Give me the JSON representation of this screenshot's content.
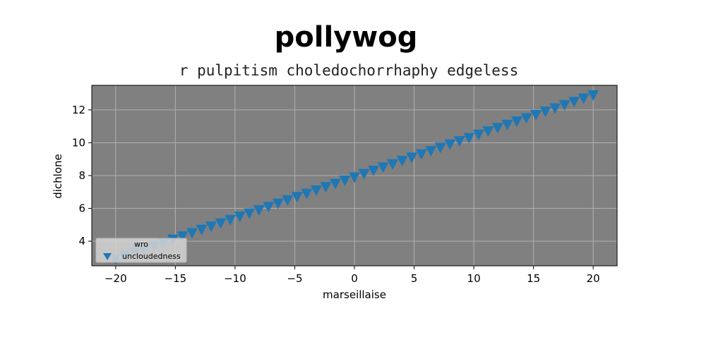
{
  "chart_data": {
    "type": "scatter",
    "title": "pollywog",
    "subtitle": "r pulpitism choledochorrhaphy edgeless",
    "xlabel": "marseillaise",
    "ylabel": "dichlone",
    "xlim": [
      -22,
      22
    ],
    "ylim": [
      2.5,
      13.5
    ],
    "xticks": [
      -20,
      -15,
      -10,
      -5,
      0,
      5,
      10,
      15,
      20
    ],
    "xtick_labels": [
      "−20",
      "−15",
      "−10",
      "−5",
      "0",
      "5",
      "10",
      "15",
      "20"
    ],
    "yticks": [
      4,
      6,
      8,
      10,
      12
    ],
    "ytick_labels": [
      "4",
      "6",
      "8",
      "10",
      "12"
    ],
    "grid": true,
    "plot_background": "#808080",
    "legend": {
      "title": "wro",
      "placement": "lower-left"
    },
    "series": [
      {
        "name": "uncloudedness",
        "marker": "triangle-down",
        "color": "#1f77b4",
        "x": [
          -20.0,
          -19.2,
          -18.4,
          -17.6,
          -16.8,
          -16.0,
          -15.2,
          -14.4,
          -13.6,
          -12.8,
          -12.0,
          -11.2,
          -10.4,
          -9.6,
          -8.8,
          -8.0,
          -7.2,
          -6.4,
          -5.6,
          -4.8,
          -4.0,
          -3.2,
          -2.4,
          -1.6,
          -0.8,
          0.0,
          0.8,
          1.6,
          2.4,
          3.2,
          4.0,
          4.8,
          5.6,
          6.4,
          7.2,
          8.0,
          8.8,
          9.6,
          10.4,
          11.2,
          12.0,
          12.8,
          13.6,
          14.4,
          15.2,
          16.0,
          16.8,
          17.6,
          18.4,
          19.2,
          20.0
        ],
        "y": [
          2.9,
          3.1,
          3.3,
          3.5,
          3.7,
          3.9,
          4.1,
          4.3,
          4.5,
          4.7,
          4.9,
          5.1,
          5.3,
          5.5,
          5.7,
          5.9,
          6.1,
          6.3,
          6.5,
          6.7,
          6.9,
          7.1,
          7.3,
          7.5,
          7.7,
          7.9,
          8.1,
          8.3,
          8.5,
          8.7,
          8.9,
          9.1,
          9.3,
          9.5,
          9.7,
          9.9,
          10.1,
          10.3,
          10.5,
          10.7,
          10.9,
          11.1,
          11.3,
          11.5,
          11.7,
          11.9,
          12.1,
          12.3,
          12.5,
          12.7,
          12.9
        ]
      }
    ]
  }
}
